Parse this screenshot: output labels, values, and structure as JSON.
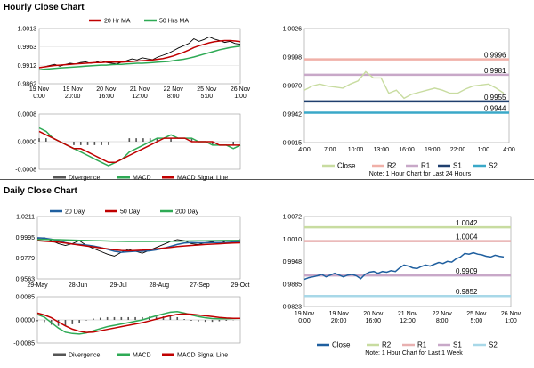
{
  "sections": {
    "hourly_title": "Hourly Close Chart",
    "daily_title": "Daily Close Chart"
  },
  "colors": {
    "price": "#000000",
    "ma_short": "#c00000",
    "ma_long": "#2eaa55",
    "macd": "#2eaa55",
    "signal": "#c00000",
    "divergence": "#555555",
    "close": "#c8dca0",
    "r2": "#f0b0a8",
    "r1": "#c8a8c8",
    "s1": "#1f3f6e",
    "s2": "#3aa8c8",
    "close_daily": "#1f5f9f",
    "r2_daily": "#c8dca0",
    "r1_daily": "#e8b0b0",
    "s1_daily": "#c8a8c8",
    "s2_daily": "#a8d8e8"
  },
  "chart_data": [
    {
      "id": "hourly_price",
      "type": "line",
      "legend": [
        "20 Hr MA",
        "50 Hrs MA"
      ],
      "x_ticks": [
        "19 Nov\n0:00",
        "19 Nov\n20:00",
        "20 Nov\n16:00",
        "21 Nov\n12:00",
        "22 Nov\n8:00",
        "25 Nov\n5:00",
        "26 Nov\n1:00"
      ],
      "ylim": [
        0.9862,
        1.0013
      ],
      "y_ticks": [
        "1.0013",
        "0.9963",
        "0.9912",
        "0.9862"
      ],
      "series": [
        {
          "name": "Close",
          "values": [
            0.9905,
            0.9908,
            0.9912,
            0.9915,
            0.991,
            0.9914,
            0.9918,
            0.9916,
            0.992,
            0.9922,
            0.9918,
            0.9921,
            0.9925,
            0.992,
            0.9918,
            0.9916,
            0.9921,
            0.9925,
            0.993,
            0.9927,
            0.9933,
            0.993,
            0.9928,
            0.9935,
            0.994,
            0.9945,
            0.9952,
            0.996,
            0.9966,
            0.9972,
            0.9985,
            0.9978,
            0.9983,
            0.999,
            0.9984,
            0.998,
            0.9975,
            0.9978,
            0.9972,
            0.997
          ]
        },
        {
          "name": "20 Hr MA",
          "values": [
            0.9906,
            0.9908,
            0.991,
            0.9912,
            0.9913,
            0.9914,
            0.9915,
            0.9916,
            0.9917,
            0.9918,
            0.9919,
            0.992,
            0.992,
            0.9921,
            0.9921,
            0.9921,
            0.9921,
            0.9922,
            0.9923,
            0.9924,
            0.9925,
            0.9926,
            0.9927,
            0.9929,
            0.9931,
            0.9934,
            0.9938,
            0.9943,
            0.9948,
            0.9954,
            0.9961,
            0.9966,
            0.997,
            0.9974,
            0.9977,
            0.9979,
            0.998,
            0.998,
            0.9979,
            0.9977
          ]
        },
        {
          "name": "50 Hrs MA",
          "values": [
            0.99,
            0.9902,
            0.9903,
            0.9904,
            0.9905,
            0.9906,
            0.9907,
            0.9908,
            0.9909,
            0.991,
            0.9911,
            0.9912,
            0.9913,
            0.9913,
            0.9914,
            0.9915,
            0.9915,
            0.9916,
            0.9917,
            0.9918,
            0.9918,
            0.9919,
            0.992,
            0.9921,
            0.9922,
            0.9923,
            0.9925,
            0.9927,
            0.9929,
            0.9932,
            0.9935,
            0.9939,
            0.9943,
            0.9947,
            0.9951,
            0.9955,
            0.9958,
            0.9961,
            0.9963,
            0.9965
          ]
        }
      ]
    },
    {
      "id": "hourly_macd",
      "type": "line",
      "legend": [
        "Divergence",
        "MACD",
        "MACD Signal Line"
      ],
      "ylim": [
        -0.0008,
        0.0008
      ],
      "y_ticks": [
        "0.0008",
        "0.0000",
        "-0.0008"
      ],
      "series": [
        {
          "name": "MACD",
          "values": [
            0.0004,
            0.0003,
            0.0001,
            0.0,
            -0.0001,
            -0.0002,
            -0.0003,
            -0.0004,
            -0.0005,
            -0.0006,
            -0.0007,
            -0.0006,
            -0.0005,
            -0.0003,
            -0.0002,
            -0.0001,
            0.0,
            0.0001,
            0.0001,
            0.0002,
            0.0001,
            0.0001,
            0.0001,
            0.0,
            0.0,
            -0.0001,
            -0.0001,
            -0.0001,
            -0.0002,
            -0.0001
          ]
        },
        {
          "name": "MACD Signal Line",
          "values": [
            0.0003,
            0.0002,
            0.0001,
            0.0,
            -0.0001,
            -0.0002,
            -0.0002,
            -0.0003,
            -0.0004,
            -0.0005,
            -0.0006,
            -0.0006,
            -0.0005,
            -0.0004,
            -0.0003,
            -0.0002,
            -0.0001,
            0.0,
            0.0001,
            0.0001,
            0.0001,
            0.0001,
            0.0,
            0.0,
            0.0,
            0.0,
            -0.0001,
            -0.0001,
            -0.0001,
            -0.0001
          ]
        },
        {
          "name": "Divergence",
          "values": [
            0.0001,
            0.0001,
            0.0,
            0.0,
            0.0,
            -0.0001,
            -0.0001,
            -0.0001,
            -0.0001,
            -0.0001,
            -0.0001,
            0.0,
            0.0,
            0.0001,
            0.0001,
            0.0001,
            0.0001,
            0.0001,
            0.0,
            0.0001,
            0.0,
            0.0,
            0.0001,
            0.0,
            0.0,
            -0.0001,
            0.0,
            0.0,
            -0.0001,
            0.0
          ]
        }
      ]
    },
    {
      "id": "hourly_levels",
      "type": "line",
      "x_ticks": [
        "4:00",
        "7:00",
        "10:00",
        "13:00",
        "16:00",
        "19:00",
        "22:00",
        "1:00",
        "4:00"
      ],
      "ylim": [
        0.9915,
        1.0026
      ],
      "y_ticks": [
        "1.0026",
        "0.9998",
        "0.9970",
        "0.9942",
        "0.9915"
      ],
      "legend": [
        "Close",
        "R2",
        "R1",
        "S1",
        "S2"
      ],
      "note": "Note: 1 Hour Chart for Last 24 Hours",
      "levels": {
        "R2": 0.9996,
        "R1": 0.9981,
        "S1": 0.9955,
        "S2": 0.9944
      },
      "level_labels": [
        "0.9996",
        "0.9981",
        "0.9955",
        "0.9944"
      ],
      "close": [
        0.9966,
        0.997,
        0.9972,
        0.997,
        0.9969,
        0.9968,
        0.9972,
        0.9975,
        0.9984,
        0.9978,
        0.9978,
        0.9963,
        0.9966,
        0.9958,
        0.9962,
        0.9964,
        0.9966,
        0.9968,
        0.9966,
        0.9963,
        0.9963,
        0.9967,
        0.997,
        0.9971,
        0.9972,
        0.9968,
        0.9963
      ]
    },
    {
      "id": "daily_price",
      "type": "line",
      "legend": [
        "20 Day",
        "50 Day",
        "200 Day"
      ],
      "x_ticks": [
        "29-May",
        "28-Jun",
        "29-Jul",
        "28-Aug",
        "27-Sep",
        "29-Oct"
      ],
      "ylim": [
        0.9563,
        1.0211
      ],
      "y_ticks": [
        "1.0211",
        "0.9995",
        "0.9779",
        "0.9563"
      ],
      "series": [
        {
          "name": "Close",
          "values": [
            0.9985,
            0.999,
            0.996,
            0.993,
            0.991,
            0.993,
            0.996,
            0.991,
            0.988,
            0.985,
            0.982,
            0.98,
            0.984,
            0.987,
            0.985,
            0.983,
            0.986,
            0.989,
            0.992,
            0.995,
            0.997,
            0.996,
            0.993,
            0.992,
            0.994,
            0.995,
            0.993,
            0.996,
            0.995,
            0.997
          ]
        },
        {
          "name": "20 Day",
          "values": [
            0.999,
            0.9985,
            0.9975,
            0.996,
            0.994,
            0.9925,
            0.992,
            0.9915,
            0.9905,
            0.989,
            0.987,
            0.985,
            0.984,
            0.9845,
            0.985,
            0.985,
            0.9855,
            0.9865,
            0.988,
            0.99,
            0.992,
            0.9935,
            0.994,
            0.9938,
            0.9938,
            0.994,
            0.994,
            0.9942,
            0.9945,
            0.995
          ]
        },
        {
          "name": "50 Day",
          "values": [
            0.996,
            0.9955,
            0.995,
            0.9945,
            0.9935,
            0.9925,
            0.9915,
            0.9905,
            0.9895,
            0.9885,
            0.9875,
            0.9865,
            0.9858,
            0.9855,
            0.9858,
            0.9862,
            0.9868,
            0.9875,
            0.9882,
            0.989,
            0.9898,
            0.9905,
            0.991,
            0.9915,
            0.992,
            0.9924,
            0.9928,
            0.9932,
            0.9935,
            0.9938
          ]
        },
        {
          "name": "200 Day",
          "values": [
            0.9972,
            0.9972,
            0.9971,
            0.997,
            0.9968,
            0.9966,
            0.9964,
            0.9962,
            0.996,
            0.9958,
            0.9956,
            0.9954,
            0.9953,
            0.9952,
            0.9952,
            0.9952,
            0.9952,
            0.9953,
            0.9953,
            0.9954,
            0.9955,
            0.9956,
            0.9957,
            0.9958,
            0.9959,
            0.996,
            0.9961,
            0.9962,
            0.9962,
            0.9963
          ]
        }
      ]
    },
    {
      "id": "daily_macd",
      "type": "line",
      "legend": [
        "Divergence",
        "MACD",
        "MACD Signal Line"
      ],
      "ylim": [
        -0.0085,
        0.0085
      ],
      "y_ticks": [
        "0.0085",
        "0.0000",
        "-0.0085"
      ],
      "series": [
        {
          "name": "MACD",
          "values": [
            0.002,
            0.001,
            -0.001,
            -0.003,
            -0.0045,
            -0.005,
            -0.0052,
            -0.0048,
            -0.004,
            -0.0032,
            -0.0025,
            -0.002,
            -0.0015,
            -0.001,
            -0.0005,
            0.0,
            0.0008,
            0.0015,
            0.0022,
            0.0028,
            0.003,
            0.0025,
            0.0018,
            0.0012,
            0.0008,
            0.0005,
            0.0004,
            0.0004,
            0.0005,
            0.0006
          ]
        },
        {
          "name": "MACD Signal Line",
          "values": [
            0.0025,
            0.0018,
            0.0008,
            -0.0008,
            -0.0022,
            -0.0034,
            -0.0042,
            -0.0046,
            -0.0045,
            -0.004,
            -0.0035,
            -0.003,
            -0.0025,
            -0.002,
            -0.0015,
            -0.001,
            -0.0004,
            0.0003,
            0.0009,
            0.0015,
            0.002,
            0.0022,
            0.0021,
            0.0018,
            0.0015,
            0.0012,
            0.0009,
            0.0007,
            0.0006,
            0.0006
          ]
        },
        {
          "name": "Divergence",
          "values": [
            -0.0005,
            -0.0008,
            -0.0018,
            -0.0022,
            -0.0023,
            -0.0016,
            -0.001,
            -0.0002,
            0.0005,
            0.0008,
            0.001,
            0.001,
            0.001,
            0.001,
            0.001,
            0.001,
            0.0012,
            0.0012,
            0.0013,
            0.0013,
            0.001,
            0.0003,
            -0.0003,
            -0.0006,
            -0.0007,
            -0.0007,
            -0.0005,
            -0.0003,
            -0.0001,
            0.0
          ]
        }
      ]
    },
    {
      "id": "daily_levels",
      "type": "line",
      "x_ticks": [
        "19 Nov\n0:00",
        "19 Nov\n20:00",
        "20 Nov\n16:00",
        "21 Nov\n12:00",
        "22 Nov\n8:00",
        "25 Nov\n5:00",
        "26 Nov\n1:00"
      ],
      "ylim": [
        0.9823,
        1.0072
      ],
      "y_ticks": [
        "1.0072",
        "1.0010",
        "0.9948",
        "0.9885",
        "0.9823"
      ],
      "legend": [
        "Close",
        "R2",
        "R1",
        "S1",
        "S2"
      ],
      "note": "Note: 1 Hour Chart for Last 1 Week",
      "levels": {
        "R2": 1.0042,
        "R1": 1.0004,
        "S1": 0.9909,
        "S2": 0.9852
      },
      "level_labels": [
        "1.0042",
        "1.0004",
        "0.9909",
        "0.9852"
      ],
      "close": [
        0.9898,
        0.9903,
        0.9905,
        0.9908,
        0.9912,
        0.9905,
        0.991,
        0.9915,
        0.991,
        0.9905,
        0.991,
        0.9912,
        0.9908,
        0.99,
        0.9912,
        0.9918,
        0.992,
        0.9915,
        0.992,
        0.9918,
        0.9922,
        0.992,
        0.993,
        0.9938,
        0.9935,
        0.993,
        0.9928,
        0.9934,
        0.9938,
        0.9935,
        0.994,
        0.9945,
        0.9942,
        0.9948,
        0.9946,
        0.9955,
        0.996,
        0.997,
        0.9968,
        0.9972,
        0.9968,
        0.9966,
        0.9962,
        0.996,
        0.9965,
        0.9962,
        0.996
      ]
    }
  ]
}
